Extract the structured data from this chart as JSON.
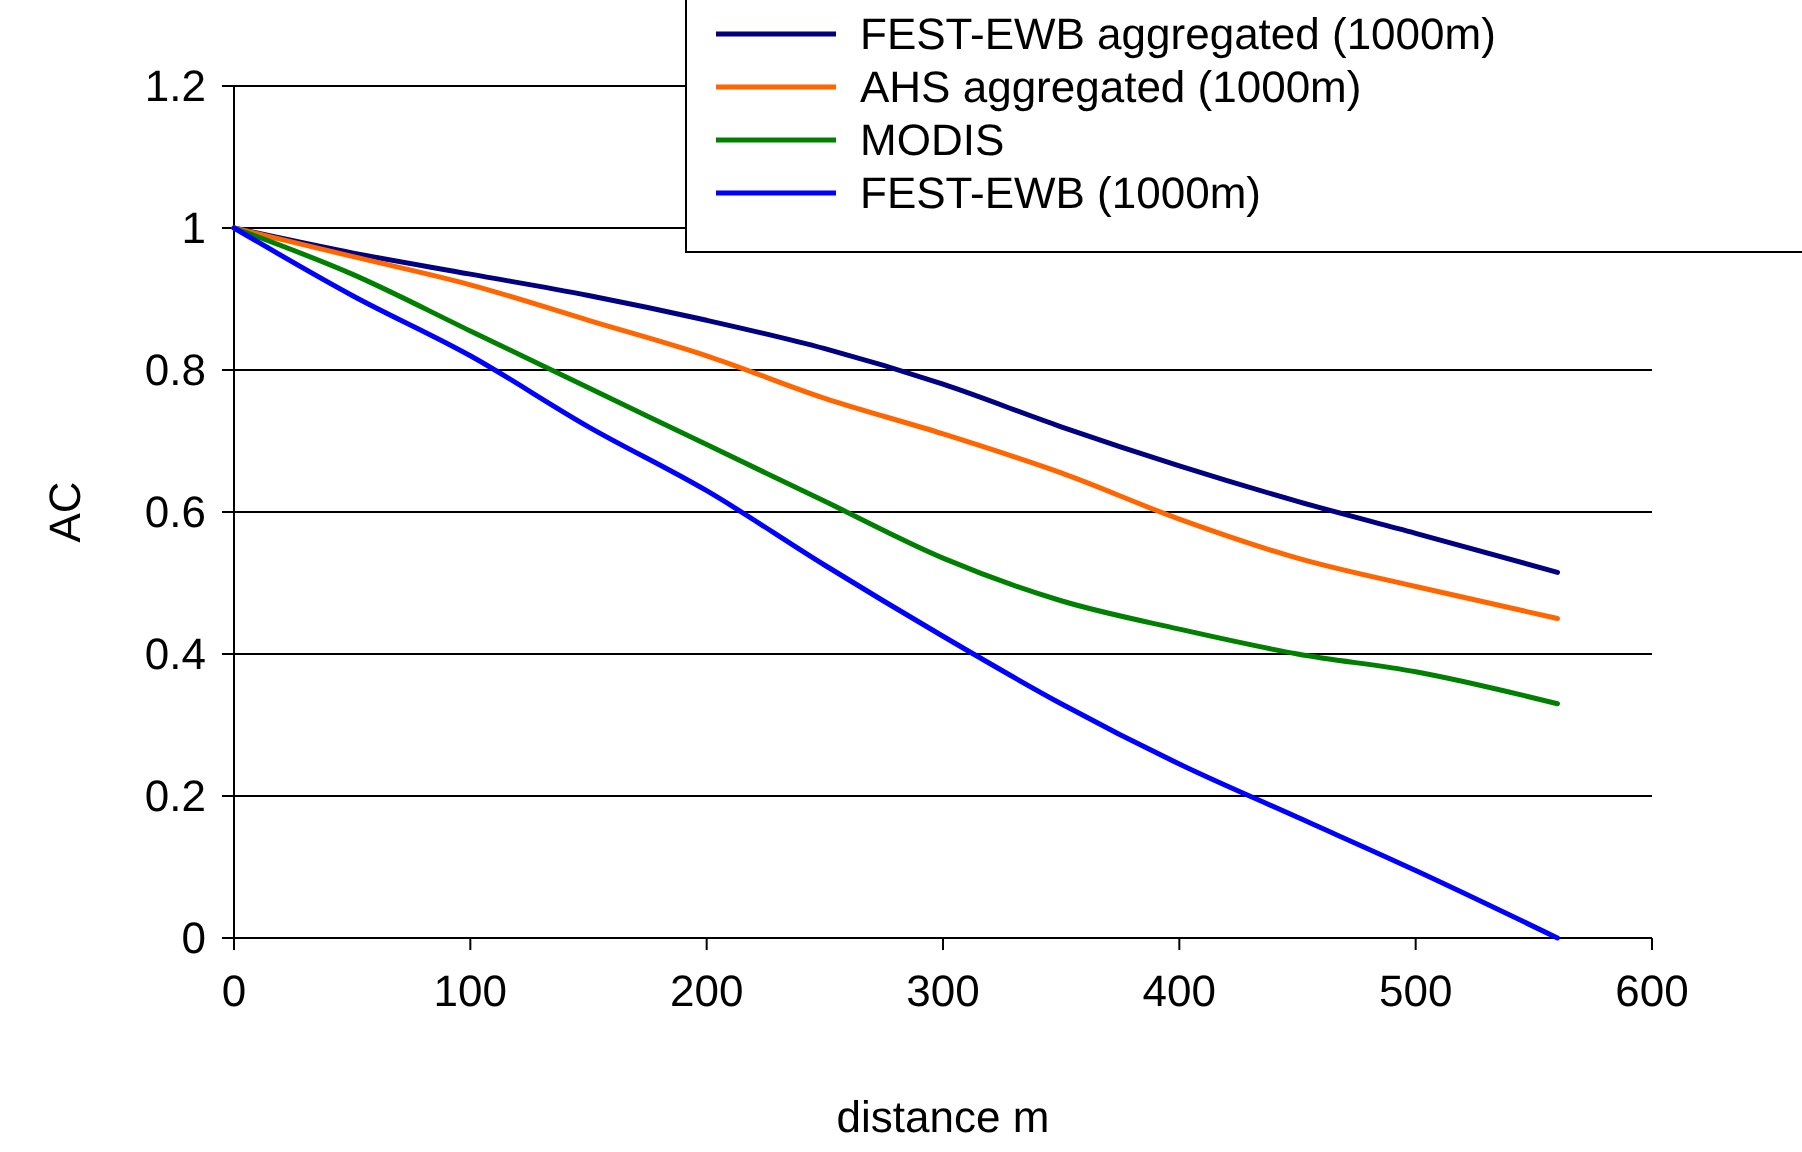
{
  "chart_data": {
    "type": "line",
    "xlabel": "distance m",
    "ylabel": "AC",
    "xlim": [
      0,
      600
    ],
    "ylim": [
      0,
      1.2
    ],
    "xticks": [
      0,
      100,
      200,
      300,
      400,
      500,
      600
    ],
    "yticks": [
      0,
      0.2,
      0.4,
      0.6,
      0.8,
      1,
      1.2
    ],
    "grid": "y",
    "legend": "top right",
    "marker": "none",
    "line_style": "solid",
    "x": [
      0,
      50,
      100,
      150,
      200,
      250,
      300,
      350,
      400,
      450,
      500,
      560
    ],
    "series": [
      {
        "name": "FEST-EWB aggregated (1000m)",
        "color": "#000080",
        "values": [
          1,
          0.965,
          0.935,
          0.905,
          0.87,
          0.83,
          0.78,
          0.72,
          0.665,
          0.615,
          0.57,
          0.515
        ]
      },
      {
        "name": "AHS aggregated (1000m)",
        "color": "#ff6600",
        "values": [
          1,
          0.96,
          0.92,
          0.87,
          0.82,
          0.76,
          0.71,
          0.655,
          0.59,
          0.535,
          0.495,
          0.45
        ]
      },
      {
        "name": "MODIS",
        "color": "#008000",
        "values": [
          1,
          0.935,
          0.855,
          0.775,
          0.695,
          0.615,
          0.535,
          0.475,
          0.435,
          0.4,
          0.375,
          0.33
        ]
      },
      {
        "name": "FEST-EWB (1000m)",
        "color": "#0000ff",
        "values": [
          1,
          0.905,
          0.82,
          0.72,
          0.63,
          0.525,
          0.425,
          0.33,
          0.245,
          0.17,
          0.095,
          0
        ]
      }
    ]
  }
}
